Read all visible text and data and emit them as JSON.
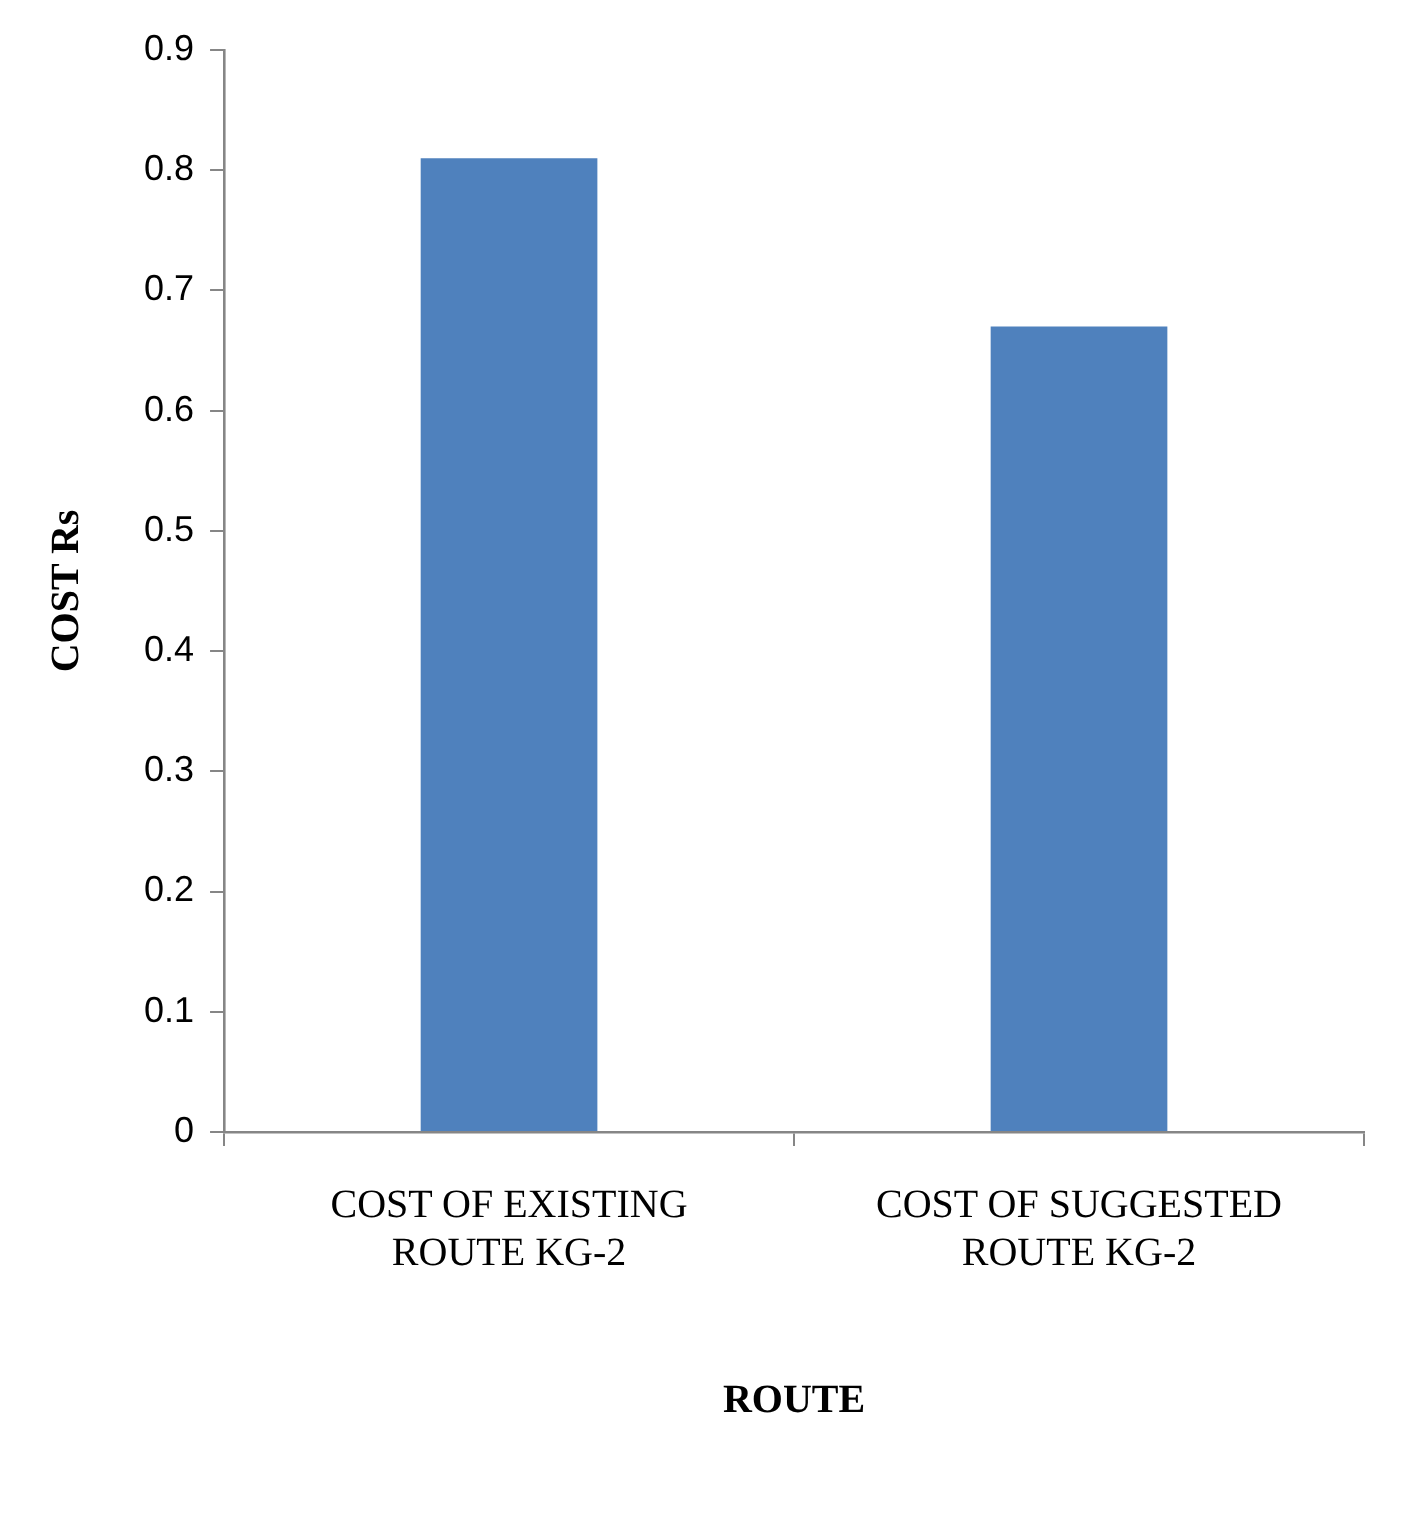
{
  "chart_data": {
    "type": "bar",
    "xlabel": "ROUTE",
    "ylabel": "COST Rs",
    "categories": [
      "COST OF EXISTING ROUTE KG-2",
      "COST OF SUGGESTED ROUTE KG-2"
    ],
    "values": [
      0.81,
      0.67
    ],
    "color": "#4f81bd",
    "ylim": [
      0,
      0.9
    ],
    "yticks": [
      0,
      0.1,
      0.2,
      0.3,
      0.4,
      0.5,
      0.6,
      0.7,
      0.8,
      0.9
    ],
    "grid": false,
    "legend": false
  }
}
